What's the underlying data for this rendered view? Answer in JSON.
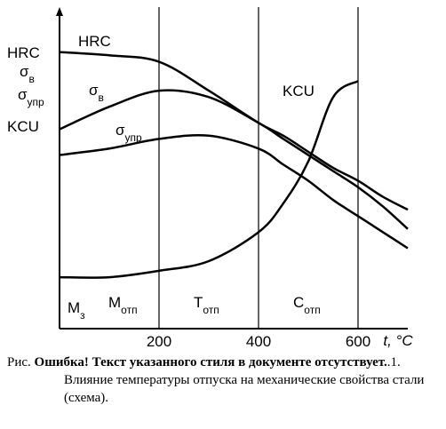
{
  "chart_data": {
    "type": "line",
    "xlabel": "t, °C",
    "x": [
      0,
      100,
      200,
      300,
      400,
      450,
      500,
      550,
      600,
      650,
      700
    ],
    "xlim": [
      0,
      700
    ],
    "ylim": [
      0,
      100
    ],
    "xticks": [
      200,
      400,
      600
    ],
    "grid": true,
    "axis_labels": [
      {
        "text": "HRC"
      },
      {
        "text": "σ",
        "sub": "в"
      },
      {
        "text": "σ",
        "sub": "упр"
      },
      {
        "text": "KCU"
      }
    ],
    "series": [
      {
        "name": "HRC",
        "color": "#000000",
        "values": [
          86,
          85,
          83,
          74,
          64,
          60,
          55,
          50,
          46,
          41,
          37
        ]
      },
      {
        "name": "σ",
        "name_sub": "в",
        "color": "#000000",
        "values": [
          62,
          69,
          74,
          72,
          64,
          59,
          54,
          49,
          44,
          38,
          31
        ]
      },
      {
        "name": "σ",
        "name_sub": "упр",
        "color": "#000000",
        "values": [
          54,
          56,
          59,
          60,
          56,
          51,
          46,
          40,
          35,
          30,
          25
        ]
      },
      {
        "name": "KCU",
        "color": "#000000",
        "values": [
          16,
          16,
          18,
          21,
          30,
          39,
          52,
          72,
          77,
          null,
          null
        ]
      }
    ],
    "regions": [
      {
        "text": "M",
        "sub": "з"
      },
      {
        "text": "M",
        "sub": "отп"
      },
      {
        "text": "T",
        "sub": "отп"
      },
      {
        "text": "C",
        "sub": "отп"
      }
    ],
    "caption": {
      "prefix": "Рис.",
      "error": "Ошибка! Текст указанного стиля в документе отсутствует.",
      "text": ".1. Влияние температуры отпуска на механические свойства стали (схема)."
    }
  }
}
